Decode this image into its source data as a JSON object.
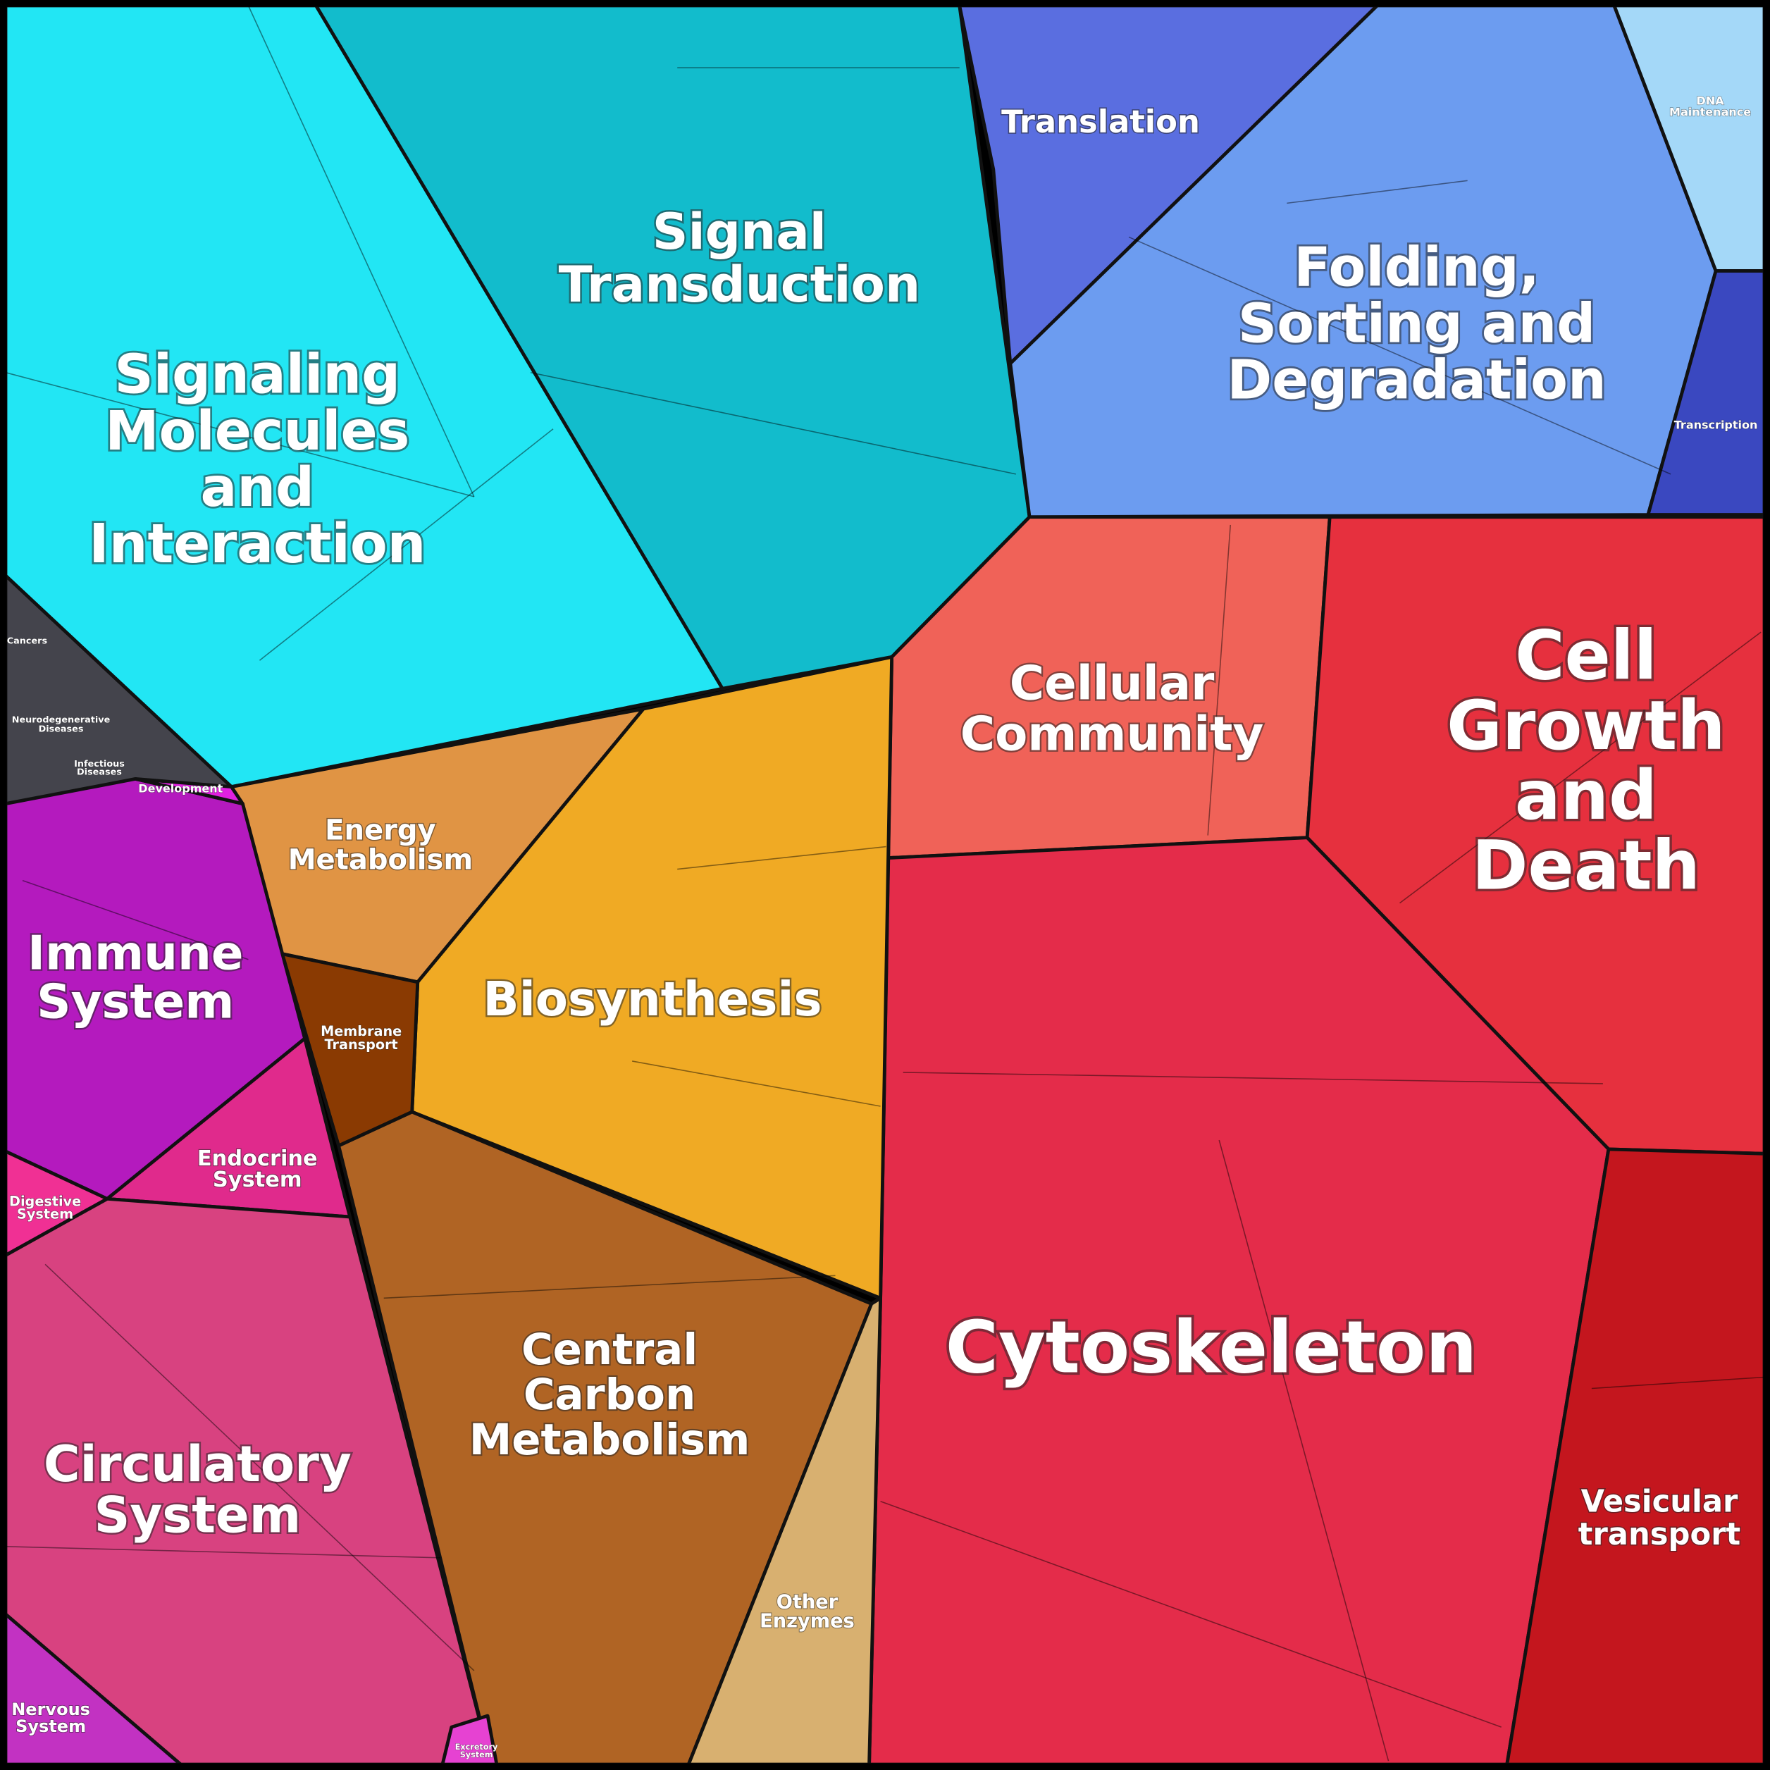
{
  "regions": [
    {
      "label": [
        "Signaling",
        "Molecules",
        "and",
        "Interaction"
      ]
    },
    {
      "label": [
        "Signal",
        "Transduction"
      ]
    },
    {
      "label": [
        "Translation"
      ]
    },
    {
      "label": [
        "Folding,",
        "Sorting and",
        "Degradation"
      ]
    },
    {
      "label": [
        "DNA",
        "Maintenance"
      ]
    },
    {
      "label": [
        "Transcription"
      ]
    },
    {
      "label": [
        "Cellular",
        "Community"
      ]
    },
    {
      "label": [
        "Cell",
        "Growth",
        "and",
        "Death"
      ]
    },
    {
      "label": [
        "Cytoskeleton"
      ]
    },
    {
      "label": [
        "Vesicular",
        "transport"
      ]
    },
    {
      "label": [
        "Energy",
        "Metabolism"
      ]
    },
    {
      "label": [
        "Biosynthesis"
      ]
    },
    {
      "label": [
        "Membrane",
        "Transport"
      ]
    },
    {
      "label": [
        "Central",
        "Carbon",
        "Metabolism"
      ]
    },
    {
      "label": [
        "Other",
        "Enzymes"
      ]
    },
    {
      "label": [
        "Immune",
        "System"
      ]
    },
    {
      "label": [
        "Development"
      ]
    },
    {
      "label": [
        "Endocrine",
        "System"
      ]
    },
    {
      "label": [
        "Digestive",
        "System"
      ]
    },
    {
      "label": [
        "Circulatory",
        "System"
      ]
    },
    {
      "label": [
        "Nervous",
        "System"
      ]
    },
    {
      "label": [
        "Excretory",
        "System"
      ]
    },
    {
      "label": [
        "Cancers"
      ]
    },
    {
      "label": [
        "Neurodegenerative",
        "Diseases"
      ]
    },
    {
      "label": [
        "Infectious",
        "Diseases"
      ]
    }
  ]
}
